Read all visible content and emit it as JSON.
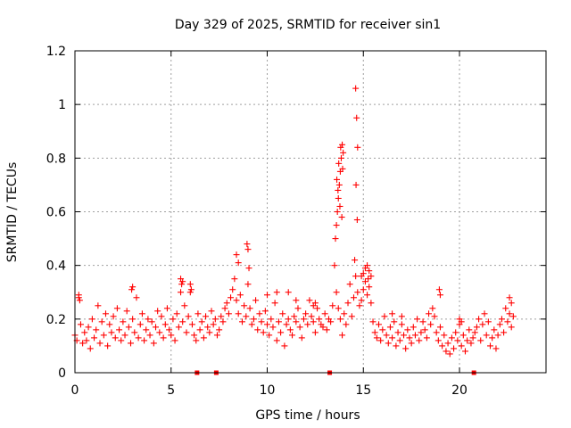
{
  "chart_data": {
    "type": "scatter",
    "title": "Day 329 of 2025, SRMTID for receiver sin1",
    "xlabel": "GPS time / hours",
    "ylabel": "SRMTID / TECUs",
    "xlim": [
      0,
      24.5
    ],
    "ylim": [
      0,
      1.2
    ],
    "xticks": [
      0,
      5,
      10,
      15,
      20
    ],
    "xtick_labels": [
      "0",
      "5",
      "10",
      "15",
      "20"
    ],
    "yticks": [
      0,
      0.2,
      0.4,
      0.6,
      0.8,
      1.0,
      1.2
    ],
    "ytick_labels": [
      "0",
      "0.2",
      "0.4",
      "0.6",
      "0.8",
      "1",
      "1.2"
    ],
    "grid": true,
    "marker": "+",
    "color": "#ff0000",
    "series": [
      {
        "name": "SRMTID",
        "x": [
          0.0,
          0.1,
          0.2,
          0.3,
          0.4,
          0.5,
          0.6,
          0.7,
          0.8,
          0.9,
          1.0,
          1.1,
          1.2,
          1.3,
          1.4,
          1.5,
          1.6,
          1.7,
          1.8,
          1.9,
          2.0,
          2.1,
          2.2,
          2.3,
          2.4,
          2.5,
          2.6,
          2.7,
          2.8,
          2.9,
          3.0,
          3.1,
          3.2,
          3.3,
          3.4,
          3.5,
          3.6,
          3.7,
          3.8,
          3.9,
          4.0,
          4.1,
          4.2,
          4.3,
          4.4,
          4.5,
          4.6,
          4.7,
          4.8,
          4.9,
          5.0,
          5.1,
          5.2,
          5.3,
          5.4,
          5.5,
          5.6,
          5.7,
          5.8,
          5.9,
          6.0,
          6.1,
          6.2,
          6.3,
          6.4,
          6.5,
          6.6,
          6.7,
          6.8,
          6.9,
          7.0,
          7.1,
          7.2,
          7.3,
          7.4,
          7.5,
          7.6,
          7.7,
          7.8,
          7.9,
          8.0,
          8.1,
          8.2,
          8.3,
          8.4,
          8.5,
          8.6,
          8.7,
          8.8,
          8.9,
          9.0,
          9.1,
          9.2,
          9.3,
          9.4,
          9.5,
          9.6,
          9.7,
          9.8,
          9.9,
          10.0,
          10.1,
          10.2,
          10.3,
          10.4,
          10.5,
          10.6,
          10.7,
          10.8,
          10.9,
          11.0,
          11.1,
          11.2,
          11.3,
          11.4,
          11.5,
          11.6,
          11.7,
          11.8,
          11.9,
          12.0,
          12.1,
          12.2,
          12.3,
          12.4,
          12.5,
          12.6,
          12.7,
          12.8,
          12.9,
          13.0,
          13.1,
          13.2,
          13.3,
          13.4,
          13.5,
          13.6,
          13.7,
          13.8,
          13.9,
          14.0,
          14.1,
          14.2,
          14.3,
          14.4,
          14.5,
          14.6,
          14.7,
          14.8,
          14.9,
          15.0,
          15.1,
          15.2,
          15.3,
          15.4,
          15.5,
          15.6,
          15.7,
          15.8,
          15.9,
          16.0,
          16.1,
          16.2,
          16.3,
          16.4,
          16.5,
          16.6,
          16.7,
          16.8,
          16.9,
          17.0,
          17.1,
          17.2,
          17.3,
          17.4,
          17.5,
          17.6,
          17.7,
          17.8,
          17.9,
          18.0,
          18.1,
          18.2,
          18.3,
          18.4,
          18.5,
          18.6,
          18.7,
          18.8,
          18.9,
          19.0,
          19.1,
          19.2,
          19.3,
          19.4,
          19.5,
          19.6,
          19.7,
          19.8,
          19.9,
          20.0,
          20.1,
          20.2,
          20.3,
          20.4,
          20.5,
          20.6,
          20.7,
          20.8,
          20.9,
          21.0,
          21.1,
          21.2,
          21.3,
          21.4,
          21.5,
          21.6,
          21.7,
          21.8,
          21.9,
          22.0,
          22.1,
          22.2,
          22.3,
          22.4,
          22.5,
          22.6,
          22.7,
          22.8,
          13.55,
          13.6,
          13.65,
          13.7,
          13.75,
          13.8,
          13.85,
          13.9,
          13.95,
          13.62,
          13.72,
          13.82,
          13.92,
          13.68,
          13.78,
          13.88,
          14.6,
          14.65,
          14.7,
          14.62,
          14.68,
          14.55,
          8.95,
          9.0,
          9.05,
          8.4,
          8.5,
          5.5,
          5.6,
          5.55,
          6.0,
          6.05,
          15.0,
          15.2,
          15.3,
          15.4,
          18.95,
          19.0,
          11.1,
          12.4,
          12.5,
          3.0,
          2.95,
          0.2,
          0.25,
          20.0,
          20.1,
          22.6,
          22.7,
          16.5,
          17.0,
          10.0,
          10.5,
          11.5,
          14.9,
          15.1,
          15.25
        ],
        "y": [
          0.14,
          0.12,
          0.28,
          0.18,
          0.11,
          0.15,
          0.12,
          0.17,
          0.09,
          0.2,
          0.13,
          0.16,
          0.25,
          0.11,
          0.19,
          0.14,
          0.22,
          0.1,
          0.18,
          0.15,
          0.21,
          0.13,
          0.24,
          0.16,
          0.12,
          0.19,
          0.14,
          0.23,
          0.17,
          0.11,
          0.2,
          0.15,
          0.28,
          0.13,
          0.18,
          0.22,
          0.12,
          0.16,
          0.2,
          0.14,
          0.19,
          0.11,
          0.17,
          0.23,
          0.15,
          0.21,
          0.13,
          0.18,
          0.24,
          0.16,
          0.14,
          0.2,
          0.12,
          0.22,
          0.17,
          0.3,
          0.19,
          0.25,
          0.15,
          0.21,
          0.3,
          0.18,
          0.14,
          0.12,
          0.22,
          0.16,
          0.19,
          0.13,
          0.21,
          0.17,
          0.15,
          0.23,
          0.18,
          0.2,
          0.14,
          0.16,
          0.21,
          0.19,
          0.24,
          0.26,
          0.22,
          0.28,
          0.31,
          0.35,
          0.27,
          0.22,
          0.29,
          0.19,
          0.25,
          0.21,
          0.33,
          0.24,
          0.18,
          0.2,
          0.27,
          0.16,
          0.22,
          0.19,
          0.15,
          0.23,
          0.18,
          0.14,
          0.2,
          0.17,
          0.26,
          0.12,
          0.19,
          0.15,
          0.22,
          0.1,
          0.18,
          0.2,
          0.16,
          0.14,
          0.21,
          0.19,
          0.24,
          0.17,
          0.13,
          0.2,
          0.22,
          0.18,
          0.27,
          0.21,
          0.19,
          0.15,
          0.24,
          0.2,
          0.18,
          0.17,
          0.22,
          0.16,
          0.2,
          0.19,
          0.25,
          0.4,
          0.3,
          0.24,
          0.2,
          0.14,
          0.22,
          0.18,
          0.26,
          0.33,
          0.21,
          0.28,
          0.36,
          0.3,
          0.25,
          0.27,
          0.31,
          0.34,
          0.29,
          0.32,
          0.26,
          0.19,
          0.15,
          0.13,
          0.18,
          0.12,
          0.16,
          0.21,
          0.14,
          0.11,
          0.17,
          0.13,
          0.19,
          0.1,
          0.15,
          0.12,
          0.18,
          0.14,
          0.09,
          0.16,
          0.13,
          0.11,
          0.17,
          0.14,
          0.2,
          0.12,
          0.15,
          0.19,
          0.16,
          0.13,
          0.22,
          0.18,
          0.24,
          0.21,
          0.15,
          0.12,
          0.17,
          0.1,
          0.14,
          0.08,
          0.11,
          0.07,
          0.13,
          0.09,
          0.15,
          0.12,
          0.18,
          0.1,
          0.14,
          0.08,
          0.12,
          0.16,
          0.11,
          0.13,
          0.15,
          0.17,
          0.2,
          0.12,
          0.18,
          0.22,
          0.14,
          0.19,
          0.1,
          0.13,
          0.16,
          0.09,
          0.14,
          0.18,
          0.2,
          0.15,
          0.24,
          0.19,
          0.22,
          0.17,
          0.21,
          0.5,
          0.55,
          0.6,
          0.65,
          0.7,
          0.75,
          0.8,
          0.85,
          0.82,
          0.72,
          0.78,
          0.84,
          0.76,
          0.68,
          0.62,
          0.58,
          1.06,
          0.95,
          0.84,
          0.7,
          0.57,
          0.42,
          0.48,
          0.46,
          0.39,
          0.44,
          0.41,
          0.35,
          0.34,
          0.33,
          0.33,
          0.31,
          0.37,
          0.4,
          0.38,
          0.36,
          0.31,
          0.29,
          0.3,
          0.25,
          0.26,
          0.32,
          0.31,
          0.29,
          0.27,
          0.2,
          0.19,
          0.28,
          0.26,
          0.22,
          0.21,
          0.29,
          0.3,
          0.27,
          0.36,
          0.39,
          0.35
        ]
      }
    ],
    "markers_on_axis": [
      6.35,
      7.35,
      13.25,
      20.75
    ]
  }
}
